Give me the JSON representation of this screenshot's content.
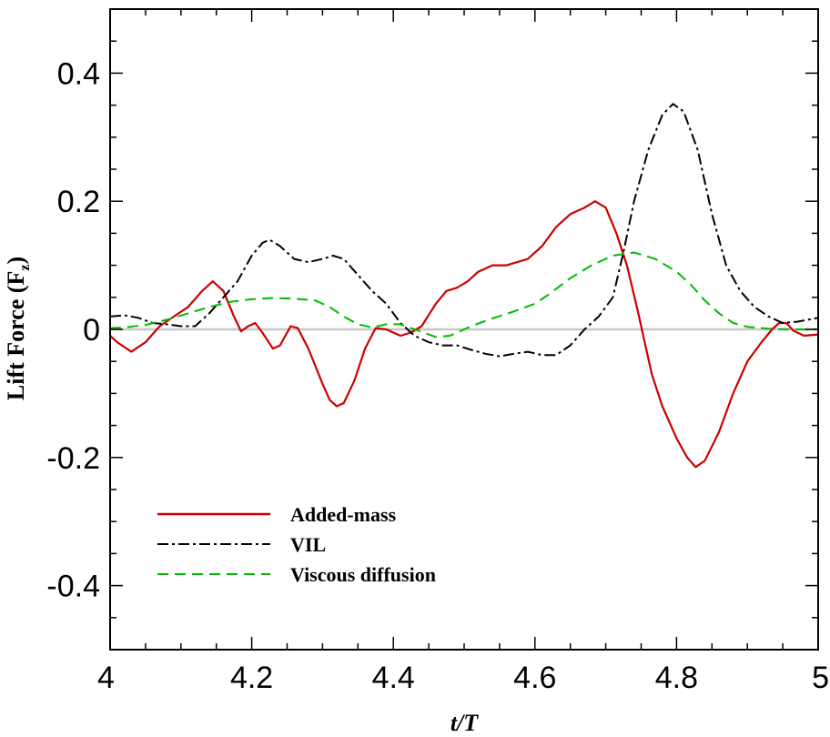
{
  "chart_data": {
    "type": "line",
    "title": "",
    "xlabel": "t/T",
    "ylabel": "Lift Force (F",
    "ylabel_subscript": "z",
    "ylabel_close": ")",
    "xlim": [
      4,
      5
    ],
    "ylim": [
      -0.5,
      0.5
    ],
    "grid": false,
    "legend_position": "lower-left",
    "x_ticks": [
      4,
      4.2,
      4.4,
      4.6,
      4.8,
      5
    ],
    "x_tick_labels": [
      "4",
      "4.2",
      "4.4",
      "4.6",
      "4.8",
      "5"
    ],
    "y_ticks": [
      -0.4,
      -0.2,
      0,
      0.2,
      0.4
    ],
    "y_tick_labels": [
      "-0.4",
      "-0.2",
      "0",
      "0.2",
      "0.4"
    ],
    "zero_line_color": "#c8c8c8",
    "series": [
      {
        "name": "Added-mass",
        "color": "#cc0000",
        "style": "solid",
        "points": [
          [
            4.0,
            -0.01
          ],
          [
            4.01,
            -0.02
          ],
          [
            4.03,
            -0.035
          ],
          [
            4.05,
            -0.02
          ],
          [
            4.07,
            0.005
          ],
          [
            4.09,
            0.02
          ],
          [
            4.11,
            0.035
          ],
          [
            4.13,
            0.06
          ],
          [
            4.145,
            0.075
          ],
          [
            4.16,
            0.06
          ],
          [
            4.175,
            0.02
          ],
          [
            4.185,
            -0.003
          ],
          [
            4.195,
            0.005
          ],
          [
            4.205,
            0.01
          ],
          [
            4.215,
            -0.005
          ],
          [
            4.23,
            -0.03
          ],
          [
            4.24,
            -0.025
          ],
          [
            4.255,
            0.005
          ],
          [
            4.265,
            0.002
          ],
          [
            4.28,
            -0.03
          ],
          [
            4.3,
            -0.085
          ],
          [
            4.31,
            -0.11
          ],
          [
            4.32,
            -0.12
          ],
          [
            4.33,
            -0.115
          ],
          [
            4.345,
            -0.08
          ],
          [
            4.36,
            -0.03
          ],
          [
            4.375,
            0.002
          ],
          [
            4.39,
            0.0
          ],
          [
            4.4,
            -0.005
          ],
          [
            4.41,
            -0.01
          ],
          [
            4.425,
            -0.005
          ],
          [
            4.44,
            0.005
          ],
          [
            4.46,
            0.04
          ],
          [
            4.475,
            0.06
          ],
          [
            4.49,
            0.065
          ],
          [
            4.505,
            0.075
          ],
          [
            4.52,
            0.09
          ],
          [
            4.54,
            0.1
          ],
          [
            4.56,
            0.1
          ],
          [
            4.59,
            0.11
          ],
          [
            4.61,
            0.13
          ],
          [
            4.63,
            0.16
          ],
          [
            4.65,
            0.18
          ],
          [
            4.67,
            0.19
          ],
          [
            4.685,
            0.2
          ],
          [
            4.7,
            0.19
          ],
          [
            4.715,
            0.15
          ],
          [
            4.73,
            0.1
          ],
          [
            4.745,
            0.03
          ],
          [
            4.755,
            -0.02
          ],
          [
            4.765,
            -0.07
          ],
          [
            4.78,
            -0.12
          ],
          [
            4.8,
            -0.17
          ],
          [
            4.815,
            -0.2
          ],
          [
            4.827,
            -0.215
          ],
          [
            4.84,
            -0.205
          ],
          [
            4.86,
            -0.16
          ],
          [
            4.88,
            -0.1
          ],
          [
            4.9,
            -0.05
          ],
          [
            4.92,
            -0.02
          ],
          [
            4.935,
            0.0
          ],
          [
            4.945,
            0.01
          ],
          [
            4.955,
            0.01
          ],
          [
            4.965,
            -0.002
          ],
          [
            4.98,
            -0.01
          ],
          [
            5.0,
            -0.008
          ]
        ]
      },
      {
        "name": "VIL",
        "color": "#000000",
        "style": "dashdot",
        "points": [
          [
            4.0,
            0.02
          ],
          [
            4.02,
            0.022
          ],
          [
            4.04,
            0.018
          ],
          [
            4.06,
            0.01
          ],
          [
            4.08,
            0.008
          ],
          [
            4.1,
            0.005
          ],
          [
            4.12,
            0.005
          ],
          [
            4.14,
            0.025
          ],
          [
            4.16,
            0.05
          ],
          [
            4.18,
            0.075
          ],
          [
            4.2,
            0.115
          ],
          [
            4.215,
            0.135
          ],
          [
            4.225,
            0.14
          ],
          [
            4.24,
            0.13
          ],
          [
            4.26,
            0.11
          ],
          [
            4.28,
            0.105
          ],
          [
            4.3,
            0.11
          ],
          [
            4.315,
            0.115
          ],
          [
            4.33,
            0.11
          ],
          [
            4.35,
            0.085
          ],
          [
            4.37,
            0.06
          ],
          [
            4.39,
            0.04
          ],
          [
            4.41,
            0.01
          ],
          [
            4.43,
            -0.01
          ],
          [
            4.45,
            -0.02
          ],
          [
            4.47,
            -0.025
          ],
          [
            4.49,
            -0.025
          ],
          [
            4.51,
            -0.032
          ],
          [
            4.53,
            -0.038
          ],
          [
            4.55,
            -0.042
          ],
          [
            4.57,
            -0.038
          ],
          [
            4.59,
            -0.035
          ],
          [
            4.61,
            -0.04
          ],
          [
            4.63,
            -0.04
          ],
          [
            4.65,
            -0.025
          ],
          [
            4.67,
            0.0
          ],
          [
            4.69,
            0.02
          ],
          [
            4.71,
            0.05
          ],
          [
            4.725,
            0.12
          ],
          [
            4.74,
            0.2
          ],
          [
            4.76,
            0.28
          ],
          [
            4.78,
            0.335
          ],
          [
            4.795,
            0.352
          ],
          [
            4.81,
            0.34
          ],
          [
            4.83,
            0.28
          ],
          [
            4.85,
            0.18
          ],
          [
            4.87,
            0.1
          ],
          [
            4.89,
            0.06
          ],
          [
            4.91,
            0.035
          ],
          [
            4.93,
            0.02
          ],
          [
            4.95,
            0.01
          ],
          [
            4.97,
            0.012
          ],
          [
            5.0,
            0.018
          ]
        ]
      },
      {
        "name": "Viscous diffusion",
        "color": "#00bb00",
        "style": "dashed",
        "points": [
          [
            4.0,
            0.002
          ],
          [
            4.02,
            0.003
          ],
          [
            4.05,
            0.007
          ],
          [
            4.08,
            0.015
          ],
          [
            4.11,
            0.025
          ],
          [
            4.14,
            0.035
          ],
          [
            4.17,
            0.043
          ],
          [
            4.2,
            0.047
          ],
          [
            4.23,
            0.049
          ],
          [
            4.26,
            0.048
          ],
          [
            4.29,
            0.045
          ],
          [
            4.31,
            0.035
          ],
          [
            4.33,
            0.02
          ],
          [
            4.35,
            0.008
          ],
          [
            4.37,
            0.003
          ],
          [
            4.39,
            0.008
          ],
          [
            4.41,
            0.008
          ],
          [
            4.43,
            0.0
          ],
          [
            4.46,
            -0.012
          ],
          [
            4.48,
            -0.01
          ],
          [
            4.51,
            0.005
          ],
          [
            4.54,
            0.017
          ],
          [
            4.57,
            0.028
          ],
          [
            4.6,
            0.04
          ],
          [
            4.62,
            0.055
          ],
          [
            4.65,
            0.08
          ],
          [
            4.68,
            0.1
          ],
          [
            4.71,
            0.115
          ],
          [
            4.74,
            0.12
          ],
          [
            4.77,
            0.11
          ],
          [
            4.8,
            0.09
          ],
          [
            4.82,
            0.07
          ],
          [
            4.84,
            0.045
          ],
          [
            4.86,
            0.025
          ],
          [
            4.88,
            0.01
          ],
          [
            4.9,
            0.004
          ],
          [
            4.93,
            0.001
          ],
          [
            4.96,
            0.0
          ],
          [
            5.0,
            0.0
          ]
        ]
      }
    ]
  }
}
